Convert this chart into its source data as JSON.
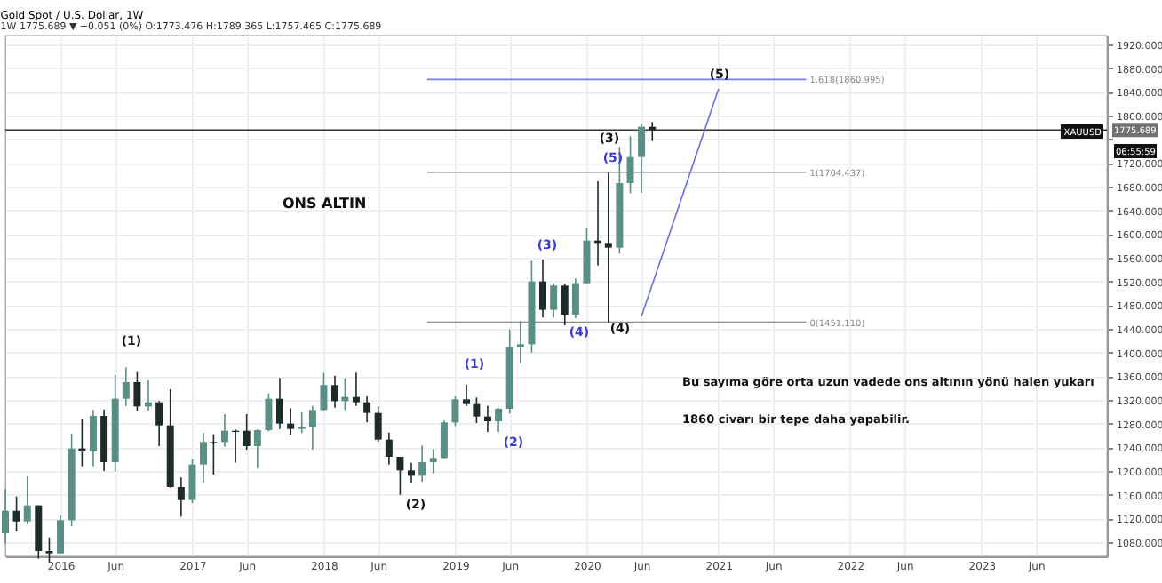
{
  "chart_data": {
    "type": "candlestick",
    "title": "Gold Spot / U.S. Dollar, 1W",
    "subtitle": "1W  1775.689 ▼ −0.051 (0%)  O:1773.476 H:1789.365 L:1757.465 C:1775.689",
    "series": [
      {
        "type": "candlestick",
        "color": "#5a8f86",
        "x": [
          "2015-08",
          "2015-10",
          "2016-01",
          "2016-02",
          "2016-04",
          "2016-06",
          "2016-07",
          "2016-09",
          "2017-01",
          "2017-02",
          "2017-04",
          "2017-07",
          "2017-08",
          "2017-11",
          "2017-12",
          "2018-01",
          "2018-03",
          "2018-10",
          "2018-11",
          "2018-12",
          "2019-01",
          "2019-05",
          "2019-06",
          "2019-07",
          "2019-08",
          "2019-10",
          "2019-12",
          "2020-01",
          "2020-04",
          "2020-05",
          "2020-06"
        ],
        "ohlc": [
          [
            1095,
            1170,
            1077,
            1133
          ],
          [
            1115,
            1191,
            1110,
            1142
          ],
          [
            1061,
            1125,
            1061,
            1117
          ],
          [
            1117,
            1263,
            1107,
            1238
          ],
          [
            1233,
            1303,
            1208,
            1293
          ],
          [
            1215,
            1362,
            1199,
            1322
          ],
          [
            1322,
            1375,
            1310,
            1350
          ],
          [
            1309,
            1353,
            1302,
            1316
          ],
          [
            1151,
            1220,
            1146,
            1211
          ],
          [
            1211,
            1264,
            1180,
            1249
          ],
          [
            1249,
            1296,
            1241,
            1268
          ],
          [
            1242,
            1270,
            1205,
            1269
          ],
          [
            1269,
            1331,
            1267,
            1322
          ],
          [
            1271,
            1299,
            1264,
            1275
          ],
          [
            1275,
            1310,
            1236,
            1303
          ],
          [
            1303,
            1366,
            1302,
            1345
          ],
          [
            1318,
            1356,
            1303,
            1325
          ],
          [
            1192,
            1243,
            1182,
            1215
          ],
          [
            1215,
            1237,
            1196,
            1222
          ],
          [
            1222,
            1285,
            1221,
            1282
          ],
          [
            1282,
            1326,
            1276,
            1321
          ],
          [
            1284,
            1306,
            1266,
            1305
          ],
          [
            1305,
            1439,
            1297,
            1409
          ],
          [
            1409,
            1453,
            1382,
            1414
          ],
          [
            1414,
            1555,
            1400,
            1520
          ],
          [
            1472,
            1517,
            1459,
            1513
          ],
          [
            1464,
            1525,
            1458,
            1517
          ],
          [
            1517,
            1611,
            1517,
            1589
          ],
          [
            1577,
            1747,
            1567,
            1686
          ],
          [
            1686,
            1765,
            1669,
            1730
          ],
          [
            1730,
            1786,
            1670,
            1781
          ]
        ]
      },
      {
        "type": "candlestick",
        "color": "#1e2b29",
        "x": [
          "2015-09",
          "2015-11",
          "2015-12",
          "2016-03",
          "2016-05",
          "2016-08",
          "2016-10",
          "2016-11",
          "2016-12",
          "2017-03",
          "2017-05",
          "2017-06",
          "2017-09",
          "2017-10",
          "2018-02",
          "2018-04",
          "2018-05",
          "2018-06",
          "2018-07",
          "2018-08",
          "2018-09",
          "2019-02",
          "2019-03",
          "2019-04",
          "2019-09",
          "2019-11",
          "2020-02",
          "2020-03",
          "2020-07"
        ],
        "ohlc": [
          [
            1133,
            1157,
            1098,
            1115
          ],
          [
            1142,
            1142,
            1052,
            1065
          ],
          [
            1065,
            1088,
            1046,
            1061
          ],
          [
            1238,
            1287,
            1208,
            1233
          ],
          [
            1293,
            1304,
            1200,
            1215
          ],
          [
            1350,
            1367,
            1301,
            1309
          ],
          [
            1316,
            1318,
            1242,
            1277
          ],
          [
            1277,
            1338,
            1172,
            1173
          ],
          [
            1173,
            1189,
            1123,
            1151
          ],
          [
            1249,
            1262,
            1194,
            1248
          ],
          [
            1268,
            1270,
            1214,
            1266
          ],
          [
            1268,
            1296,
            1236,
            1242
          ],
          [
            1322,
            1357,
            1271,
            1280
          ],
          [
            1280,
            1306,
            1261,
            1271
          ],
          [
            1345,
            1361,
            1307,
            1318
          ],
          [
            1325,
            1366,
            1310,
            1316
          ],
          [
            1316,
            1326,
            1282,
            1298
          ],
          [
            1298,
            1309,
            1250,
            1253
          ],
          [
            1253,
            1265,
            1211,
            1224
          ],
          [
            1224,
            1224,
            1160,
            1201
          ],
          [
            1201,
            1214,
            1180,
            1192
          ],
          [
            1321,
            1346,
            1310,
            1313
          ],
          [
            1313,
            1324,
            1281,
            1292
          ],
          [
            1292,
            1310,
            1266,
            1284
          ],
          [
            1520,
            1557,
            1459,
            1472
          ],
          [
            1513,
            1516,
            1446,
            1464
          ],
          [
            1589,
            1689,
            1547,
            1585
          ],
          [
            1585,
            1704,
            1451,
            1577
          ],
          [
            1781,
            1789,
            1757,
            1776
          ]
        ]
      },
      {
        "type": "line",
        "color": "#7b7fd9",
        "x": [
          "2018-10-15",
          "2021-09-01"
        ],
        "values": [
          1860.995,
          1860.995
        ]
      },
      {
        "type": "line",
        "color": "#8a8a8a",
        "x": [
          "2018-10-15",
          "2021-09-01"
        ],
        "values": [
          1704.437,
          1704.437
        ]
      },
      {
        "type": "line",
        "color": "#8a8a8a",
        "x": [
          "2018-10-15",
          "2021-09-01"
        ],
        "values": [
          1451.11,
          1451.11
        ]
      },
      {
        "type": "line",
        "color": "#6a6fe0",
        "x": [
          "2020-06-01",
          "2021-01-01"
        ],
        "values": [
          1461,
          1845
        ]
      }
    ],
    "ref_lines": [
      {
        "axis": "y",
        "value": 1775.689,
        "label": "1775.689",
        "color": "#333333"
      }
    ],
    "annotations": [
      {
        "text": "1.618(1860.995)",
        "x": "2021-09-01",
        "y": 1860.995
      },
      {
        "text": "1(1704.437)",
        "x": "2021-09-01",
        "y": 1704.437
      },
      {
        "text": "0(1451.110)",
        "x": "2021-09-01",
        "y": 1451.11
      },
      "(1)",
      "(2)",
      "(1)",
      "(2)",
      "(3)",
      "(4)",
      "(5)",
      "(3)",
      "(4)",
      "(5)",
      "ONS ALTIN",
      "Bu sayıma göre orta uzun vadede ons altının yönü halen yukarı",
      "1860 civarı bir tepe daha yapabilir.",
      "XAUUSD",
      "06:55:59"
    ],
    "xlim": [
      "2015-08-01",
      "2023-12-15"
    ],
    "xticks": [
      {
        "value": "2016-01-01",
        "label": "2016"
      },
      {
        "value": "2016-06-01",
        "label": "Jun"
      },
      {
        "value": "2017-01-01",
        "label": "2017"
      },
      {
        "value": "2017-06-01",
        "label": "Jun"
      },
      {
        "value": "2018-01-01",
        "label": "2018"
      },
      {
        "value": "2018-06-01",
        "label": "Jun"
      },
      {
        "value": "2019-01-01",
        "label": "2019"
      },
      {
        "value": "2019-06-01",
        "label": "Jun"
      },
      {
        "value": "2020-01-01",
        "label": "2020"
      },
      {
        "value": "2020-06-01",
        "label": "Jun"
      },
      {
        "value": "2021-01-01",
        "label": "2021"
      },
      {
        "value": "2021-06-01",
        "label": "Jun"
      },
      {
        "value": "2022-01-01",
        "label": "2022"
      },
      {
        "value": "2022-06-01",
        "label": "Jun"
      },
      {
        "value": "2023-01-01",
        "label": "2023"
      },
      {
        "value": "2023-06-01",
        "label": "Jun"
      }
    ],
    "ylim": [
      1056,
      1935
    ],
    "yticks": [
      {
        "value": 1080,
        "label": "1080.000"
      },
      {
        "value": 1120,
        "label": "1120.000"
      },
      {
        "value": 1160,
        "label": "1160.000"
      },
      {
        "value": 1200,
        "label": "1200.000"
      },
      {
        "value": 1240,
        "label": "1240.000"
      },
      {
        "value": 1280,
        "label": "1280.000"
      },
      {
        "value": 1320,
        "label": "1320.000"
      },
      {
        "value": 1360,
        "label": "1360.000"
      },
      {
        "value": 1400,
        "label": "1400.000"
      },
      {
        "value": 1440,
        "label": "1440.000"
      },
      {
        "value": 1480,
        "label": "1480.000"
      },
      {
        "value": 1520,
        "label": "1520.000"
      },
      {
        "value": 1560,
        "label": "1560.000"
      },
      {
        "value": 1600,
        "label": "1600.000"
      },
      {
        "value": 1640,
        "label": "1640.000"
      },
      {
        "value": 1680,
        "label": "1680.000"
      },
      {
        "value": 1720,
        "label": "1720.000"
      },
      {
        "value": 1760,
        "label": null
      },
      {
        "value": 1800,
        "label": "1800.000"
      },
      {
        "value": 1840,
        "label": "1840.000"
      },
      {
        "value": 1880,
        "label": "1880.000"
      },
      {
        "value": 1920,
        "label": "1920.000"
      }
    ],
    "grid": true
  }
}
